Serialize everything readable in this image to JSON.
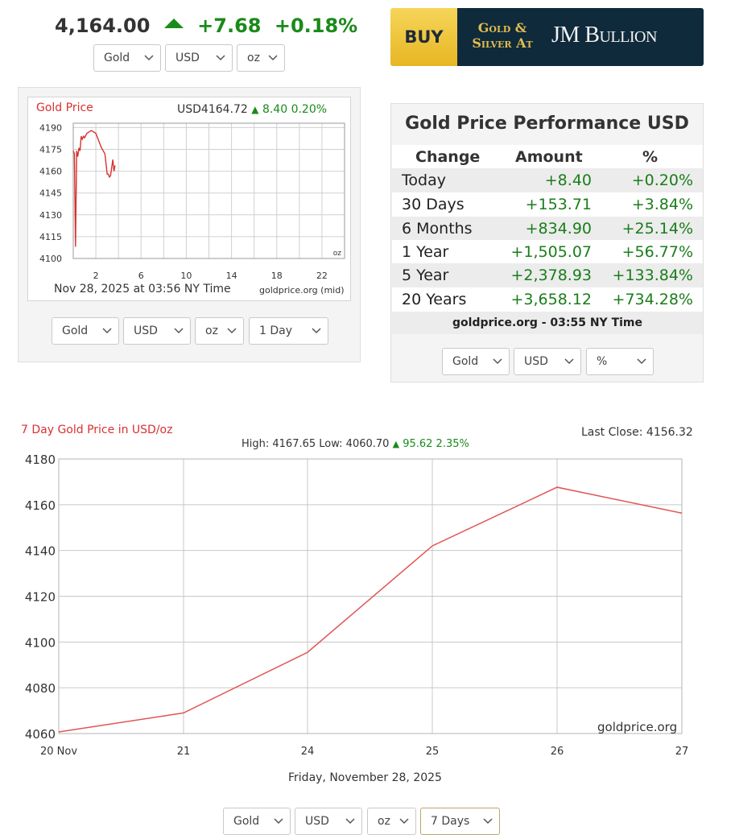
{
  "ticker": {
    "price": "4,164.00",
    "change": "+7.68",
    "percent": "+0.18%"
  },
  "top_selects": {
    "metal": "Gold",
    "currency": "USD",
    "unit": "oz"
  },
  "ad": {
    "buy": "BUY",
    "line1": "Gold &",
    "line2": "Silver At",
    "brand": "JM Bullion"
  },
  "mini_chart": {
    "title": "Gold Price",
    "price": "USD4164.72",
    "change": "8.40 0.20%",
    "date": "Nov 28, 2025 at 03:56 NY Time",
    "source": "goldprice.org (mid)",
    "unit": "oz",
    "selects": {
      "metal": "Gold",
      "currency": "USD",
      "unit": "oz",
      "range": "1 Day"
    }
  },
  "performance": {
    "title": "Gold Price Performance USD",
    "headers": {
      "change": "Change",
      "amount": "Amount",
      "pct": "%"
    },
    "rows": [
      {
        "label": "Today",
        "amount": "+8.40",
        "pct": "+0.20%"
      },
      {
        "label": "30 Days",
        "amount": "+153.71",
        "pct": "+3.84%"
      },
      {
        "label": "6 Months",
        "amount": "+834.90",
        "pct": "+25.14%"
      },
      {
        "label": "1 Year",
        "amount": "+1,505.07",
        "pct": "+56.77%"
      },
      {
        "label": "5 Year",
        "amount": "+2,378.93",
        "pct": "+133.84%"
      },
      {
        "label": "20 Years",
        "amount": "+3,658.12",
        "pct": "+734.28%"
      }
    ],
    "footer": "goldprice.org - 03:55 NY Time",
    "selects": {
      "metal": "Gold",
      "currency": "USD",
      "unit": "%"
    }
  },
  "week_chart": {
    "title": "7 Day Gold Price in USD/oz",
    "last_close": "Last Close: 4156.32",
    "highlow": "High: 4167.65 Low: 4060.70",
    "change": "95.62 2.35%",
    "watermark": "goldprice.org",
    "xlabel": "Friday, November 28, 2025",
    "selects": {
      "metal": "Gold",
      "currency": "USD",
      "unit": "oz",
      "range": "7 Days"
    }
  },
  "colors": {
    "green": "#1a8a1a",
    "red": "#d93030",
    "ad_gold": "#f2c534",
    "ad_navy": "#0f2a3b"
  },
  "chart_data": [
    {
      "type": "line",
      "title": "Gold Price",
      "x": [
        0.0,
        0.1,
        0.2,
        0.3,
        0.4,
        0.5,
        0.6,
        0.7,
        0.8,
        0.9,
        1.0,
        1.2,
        1.4,
        1.6,
        1.8,
        2.0,
        2.2,
        2.5,
        2.8,
        3.0,
        3.1,
        3.2,
        3.3,
        3.5,
        3.6,
        3.7
      ],
      "values": [
        4174,
        4172,
        4108,
        4174,
        4170,
        4176,
        4174,
        4184,
        4182,
        4184,
        4183,
        4186,
        4187,
        4188,
        4187,
        4186,
        4182,
        4176,
        4172,
        4158,
        4158,
        4156,
        4157,
        4168,
        4160,
        4164
      ],
      "xticks": [
        2,
        6,
        10,
        14,
        18,
        22
      ],
      "yticks": [
        4100,
        4115,
        4130,
        4145,
        4160,
        4175,
        4190
      ],
      "xlim": [
        0,
        24
      ],
      "ylim": [
        4100,
        4193
      ],
      "grid": true
    },
    {
      "type": "line",
      "title": "7 Day Gold Price in USD/oz",
      "categories": [
        "20 Nov",
        "21",
        "24",
        "25",
        "26",
        "27"
      ],
      "values": [
        4060.7,
        4069,
        4095.5,
        4142,
        4167.65,
        4156.32
      ],
      "yticks": [
        4060,
        4080,
        4100,
        4120,
        4140,
        4160,
        4180
      ],
      "ylim": [
        4060,
        4180
      ],
      "xlabel": "Friday, November 28, 2025",
      "grid": true
    }
  ]
}
